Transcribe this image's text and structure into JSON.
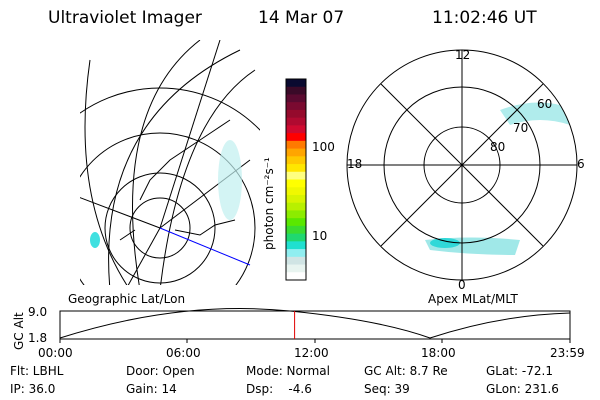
{
  "header": {
    "title": "Ultraviolet Imager",
    "date": "14 Mar 07",
    "time": "11:02:46 UT"
  },
  "colorbar": {
    "label": "photon cm⁻²s⁻¹",
    "ticks": [
      "100",
      "10"
    ],
    "colors": [
      "#0a0a30",
      "#3a0a28",
      "#5a0a30",
      "#7a0a30",
      "#950a2c",
      "#b00a30",
      "#d00a30",
      "#ff0000",
      "#ff7a00",
      "#ffa500",
      "#ffc800",
      "#ffe600",
      "#ffff80",
      "#ffff00",
      "#f0f800",
      "#d8f400",
      "#b8f000",
      "#8cec00",
      "#5ae800",
      "#3adc30",
      "#20d870",
      "#20e0d0",
      "#90eef0",
      "#d0e4e4",
      "#e8f4f0",
      "#ffffff"
    ]
  },
  "polar": {
    "labels": {
      "top": "12",
      "left": "18",
      "right": "6",
      "bottom": "0"
    },
    "rings": [
      "60",
      "70",
      "80"
    ]
  },
  "timeline": {
    "left_title": "Geographic Lat/Lon",
    "right_title": "Apex MLat/MLT",
    "ylabel": "GC Alt",
    "yticks": [
      "9.0",
      "1.8"
    ],
    "xticks": [
      "00:00",
      "06:00",
      "12:00",
      "18:00",
      "23:59"
    ],
    "current_time_fraction": 0.46,
    "marker_color": "#e00000"
  },
  "status": [
    [
      {
        "text": "Flt: LBHL"
      },
      {
        "text": "IP: 36.0"
      }
    ],
    [
      {
        "text": "Door: Open"
      },
      {
        "text": "Gain: 14"
      }
    ],
    [
      {
        "text": "Mode: Normal"
      },
      {
        "text": "Dsp:    -4.6"
      }
    ],
    [
      {
        "text": "GC Alt: 8.7 Re"
      },
      {
        "text": "Seq: 39"
      }
    ],
    [
      {
        "text": "GLat: -72.1"
      },
      {
        "text": "GLon: 231.6"
      }
    ]
  ]
}
